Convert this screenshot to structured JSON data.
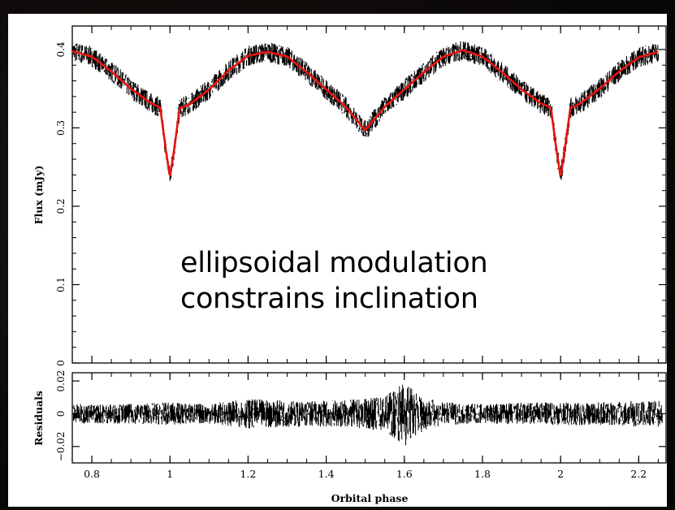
{
  "chart_data": [
    {
      "type": "line",
      "ylabel": "Flux (mJy)",
      "xlim": [
        0.75,
        2.27
      ],
      "ylim": [
        0,
        0.43
      ],
      "yticks": [
        0,
        0.1,
        0.2,
        0.3,
        0.4
      ],
      "ytick_labels": [
        "0",
        "0.1",
        "0.2",
        "0.3",
        "0.4"
      ],
      "series": [
        {
          "role": "observed-light-curve",
          "color": "#000000",
          "x": [
            0.75,
            0.8,
            0.85,
            0.9,
            0.95,
            0.975,
            0.99,
            1.0,
            1.01,
            1.025,
            1.05,
            1.1,
            1.15,
            1.2,
            1.25,
            1.3,
            1.35,
            1.4,
            1.45,
            1.5,
            1.55,
            1.6,
            1.65,
            1.7,
            1.75,
            1.8,
            1.85,
            1.9,
            1.95,
            1.975,
            1.99,
            2.0,
            2.01,
            2.025,
            2.05,
            2.1,
            2.15,
            2.2,
            2.25
          ],
          "y": [
            0.398,
            0.391,
            0.372,
            0.35,
            0.332,
            0.326,
            0.27,
            0.237,
            0.27,
            0.325,
            0.33,
            0.349,
            0.373,
            0.392,
            0.397,
            0.391,
            0.371,
            0.349,
            0.327,
            0.297,
            0.327,
            0.349,
            0.371,
            0.391,
            0.399,
            0.391,
            0.371,
            0.349,
            0.331,
            0.326,
            0.27,
            0.237,
            0.27,
            0.325,
            0.331,
            0.35,
            0.372,
            0.39,
            0.397
          ]
        },
        {
          "role": "model-fit",
          "color": "#e8140f",
          "x": [
            0.75,
            0.8,
            0.85,
            0.9,
            0.95,
            0.975,
            0.99,
            1.0,
            1.01,
            1.025,
            1.05,
            1.1,
            1.15,
            1.2,
            1.25,
            1.3,
            1.35,
            1.4,
            1.45,
            1.5,
            1.55,
            1.6,
            1.65,
            1.7,
            1.75,
            1.8,
            1.85,
            1.9,
            1.95,
            1.975,
            1.99,
            2.0,
            2.01,
            2.025,
            2.05,
            2.1,
            2.15,
            2.2,
            2.25
          ],
          "y": [
            0.398,
            0.391,
            0.372,
            0.35,
            0.332,
            0.326,
            0.27,
            0.237,
            0.27,
            0.325,
            0.33,
            0.349,
            0.373,
            0.392,
            0.397,
            0.391,
            0.371,
            0.349,
            0.327,
            0.297,
            0.327,
            0.349,
            0.371,
            0.391,
            0.399,
            0.391,
            0.371,
            0.349,
            0.331,
            0.326,
            0.27,
            0.237,
            0.27,
            0.325,
            0.331,
            0.35,
            0.372,
            0.39,
            0.397
          ]
        }
      ],
      "annotation": [
        "ellipsoidal modulation",
        "constrains inclination"
      ]
    },
    {
      "type": "line",
      "ylabel": "Residuals",
      "xlabel": "Orbital phase",
      "xlim": [
        0.75,
        2.27
      ],
      "ylim": [
        -0.03,
        0.025
      ],
      "yticks": [
        0.02,
        0,
        -0.02
      ],
      "ytick_labels": [
        "0.02",
        "0",
        "−0.02"
      ],
      "xticks": [
        0.8,
        1.0,
        1.2,
        1.4,
        1.6,
        1.8,
        2.0,
        2.2
      ],
      "xtick_labels": [
        "0.8",
        "1",
        "1.2",
        "1.4",
        "1.6",
        "1.8",
        "2",
        "2.2"
      ],
      "series": [
        {
          "role": "residuals",
          "color": "#000000",
          "scatter_by_phase": {
            "x": [
              0.75,
              0.9,
              1.0,
              1.1,
              1.2,
              1.3,
              1.4,
              1.5,
              1.55,
              1.58,
              1.6,
              1.62,
              1.65,
              1.7,
              1.8,
              1.9,
              2.0,
              2.1,
              2.2,
              2.27
            ],
            "amplitude": [
              0.006,
              0.006,
              0.007,
              0.006,
              0.009,
              0.008,
              0.008,
              0.009,
              0.011,
              0.016,
              0.02,
              0.016,
              0.01,
              0.007,
              0.006,
              0.007,
              0.007,
              0.007,
              0.008,
              0.008
            ]
          }
        }
      ]
    }
  ]
}
